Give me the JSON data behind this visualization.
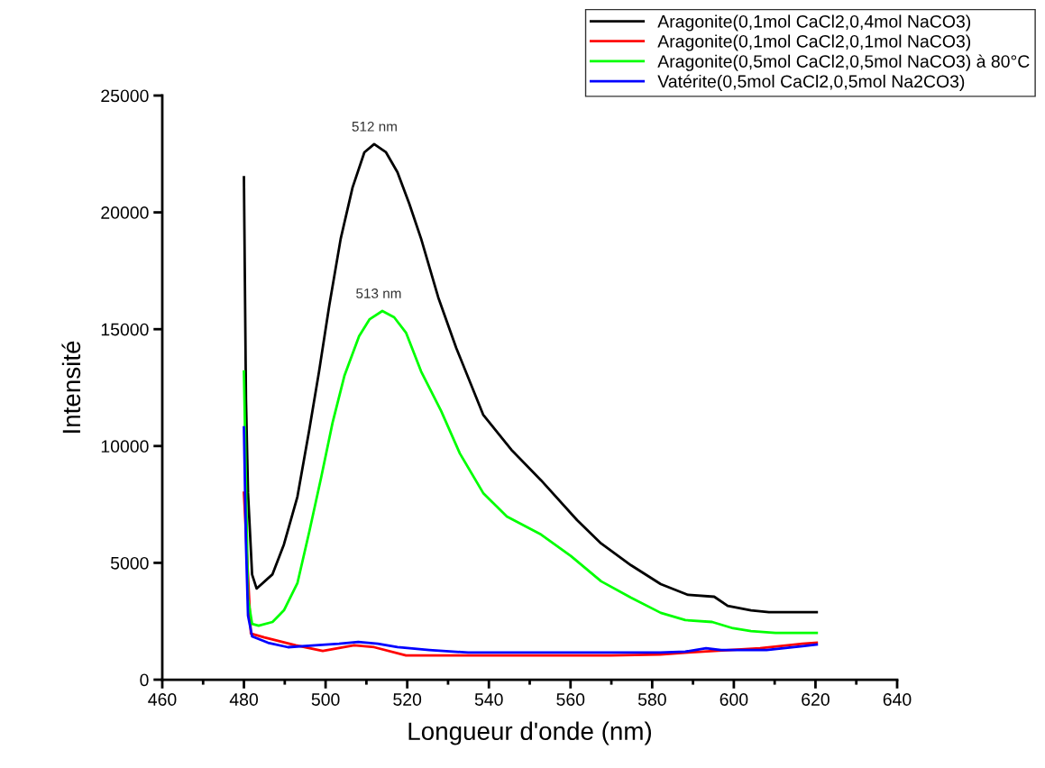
{
  "chart_data": {
    "type": "line",
    "xlabel": "Longueur d'onde (nm)",
    "ylabel": "Intensité",
    "xlim": [
      460,
      640
    ],
    "xticks": [
      460,
      480,
      500,
      520,
      540,
      560,
      580,
      600,
      620,
      640
    ],
    "ylim": [
      0,
      25000
    ],
    "yticks": [
      0,
      5000,
      10000,
      15000,
      20000,
      25000
    ],
    "grid": false,
    "legend": "top right",
    "marker": "none",
    "line_style": "solid",
    "annotations": [
      {
        "text": "512 nm",
        "x": 512,
        "y": 22920
      },
      {
        "text": "513 nm",
        "x": 513,
        "y": 15780
      }
    ],
    "series": [
      {
        "name": "Aragonite(0,1mol CaCl2,0,4mol NaCO3)",
        "color": "#000000",
        "x": [
          480,
          480.5,
          481,
          482,
          483.1,
          487,
          489.8,
          493.1,
          496,
          498.4,
          500.9,
          503.7,
          506.6,
          509.5,
          511.9,
          514.8,
          517.6,
          520.5,
          523.4,
          527.6,
          532,
          538.6,
          545.5,
          552.8,
          561.6,
          567.5,
          574.8,
          582.1,
          588.8,
          595.2,
          598.5,
          604.2,
          608.6,
          620.3
        ],
        "values": [
          21500,
          12000,
          8000,
          4500,
          3900,
          4510,
          5790,
          7830,
          10690,
          13190,
          16010,
          18870,
          21060,
          22570,
          22920,
          22570,
          21720,
          20370,
          18870,
          16360,
          14200,
          11340,
          9840,
          8530,
          6830,
          5830,
          4900,
          4090,
          3630,
          3550,
          3160,
          2970,
          2890,
          2890
        ]
      },
      {
        "name": "Aragonite(0,1mol CaCl2,0,1mol NaCO3)",
        "color": "#ff0000",
        "x": [
          480,
          481.7,
          485,
          492.7,
          499.3,
          507,
          511.9,
          519.7,
          552.8,
          569.8,
          582,
          588.8,
          606.4,
          616.8,
          620.3
        ],
        "values": [
          8000,
          1970,
          1810,
          1470,
          1230,
          1470,
          1390,
          1040,
          1040,
          1040,
          1080,
          1160,
          1350,
          1540,
          1580
        ]
      },
      {
        "name": "Aragonite(0,5mol CaCl2,0,5mol NaCO3) à 80°C",
        "color": "#00ff00",
        "x": [
          480,
          481,
          482,
          483.6,
          487,
          489.8,
          493.1,
          496,
          498.9,
          501.7,
          504.6,
          508.2,
          510.8,
          513.9,
          516.8,
          519.7,
          523.4,
          528.3,
          532.9,
          538.6,
          544.4,
          552.8,
          560.1,
          567.5,
          574.8,
          582.1,
          588.1,
          594.7,
          599.8,
          604.2,
          610.2,
          620.3
        ],
        "values": [
          13190,
          3470,
          2390,
          2310,
          2470,
          2970,
          4130,
          6330,
          8640,
          10990,
          13000,
          14700,
          15430,
          15780,
          15510,
          14850,
          13190,
          11500,
          9680,
          7990,
          6980,
          6210,
          5290,
          4210,
          3510,
          2860,
          2550,
          2470,
          2200,
          2080,
          2000,
          2000
        ]
      },
      {
        "name": "Vatérite(0,5mol CaCl2,0,5mol Na2CO3)",
        "color": "#0000ff",
        "x": [
          480,
          480.5,
          481,
          482,
          485.9,
          490.8,
          497.5,
          503.3,
          508,
          512.8,
          517.6,
          525.4,
          534.9,
          552.8,
          582,
          588.1,
          593.2,
          596.9,
          608,
          616.8,
          620.3
        ],
        "values": [
          10800,
          5790,
          2740,
          1850,
          1580,
          1390,
          1470,
          1540,
          1620,
          1540,
          1390,
          1270,
          1160,
          1160,
          1160,
          1200,
          1350,
          1270,
          1270,
          1430,
          1500
        ]
      }
    ]
  }
}
